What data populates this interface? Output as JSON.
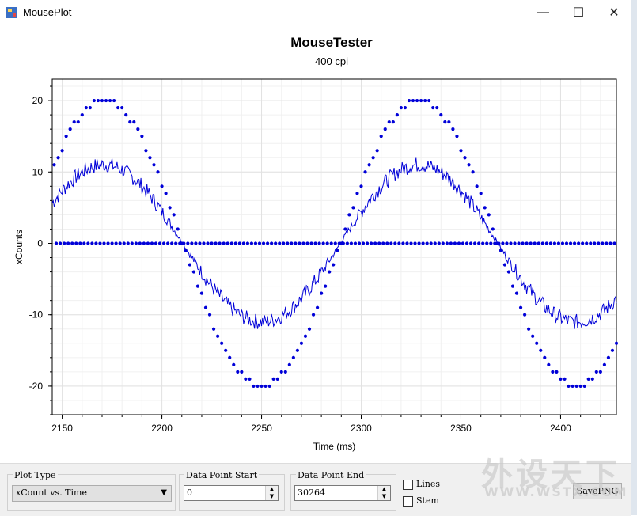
{
  "window": {
    "title": "MousePlot",
    "minimize_glyph": "—",
    "maximize_glyph": "☐",
    "close_glyph": "✕"
  },
  "colors": {
    "series": "#0000d8",
    "grid": "#e2e2e2",
    "minor_grid": "#f0f0f0"
  },
  "chart_data": {
    "type": "scatter",
    "title": "MouseTester",
    "subtitle": "400 cpi",
    "xlabel": "Time (ms)",
    "ylabel": "xCounts",
    "xlim": [
      2145,
      2428
    ],
    "ylim": [
      -24,
      23
    ],
    "x_ticks": [
      2150,
      2200,
      2250,
      2300,
      2350,
      2400
    ],
    "y_ticks": [
      20,
      10,
      0,
      -10,
      -20
    ],
    "grid": true,
    "series": [
      {
        "style": "points",
        "description_values": "sine wave of amplitude 20, period ~158 ms, points every 2 ms",
        "amplitude": 20,
        "period": 158,
        "peak_x": 2171,
        "step": 2
      },
      {
        "style": "points-zero",
        "y": 0,
        "step": 2
      },
      {
        "style": "line",
        "amplitude": 11,
        "period": 158,
        "peak_x": 2171
      }
    ]
  },
  "controls": {
    "plot_type_label": "Plot Type",
    "plot_type_value": "xCount vs. Time",
    "dp_start_label": "Data Point Start",
    "dp_start_value": "0",
    "dp_end_label": "Data Point End",
    "dp_end_value": "30264",
    "lines_label": "Lines",
    "stem_label": "Stem",
    "save_label": "SavePNG"
  },
  "watermark": {
    "line1": "外设天下",
    "line2": "WWW.WSTX.COM"
  }
}
